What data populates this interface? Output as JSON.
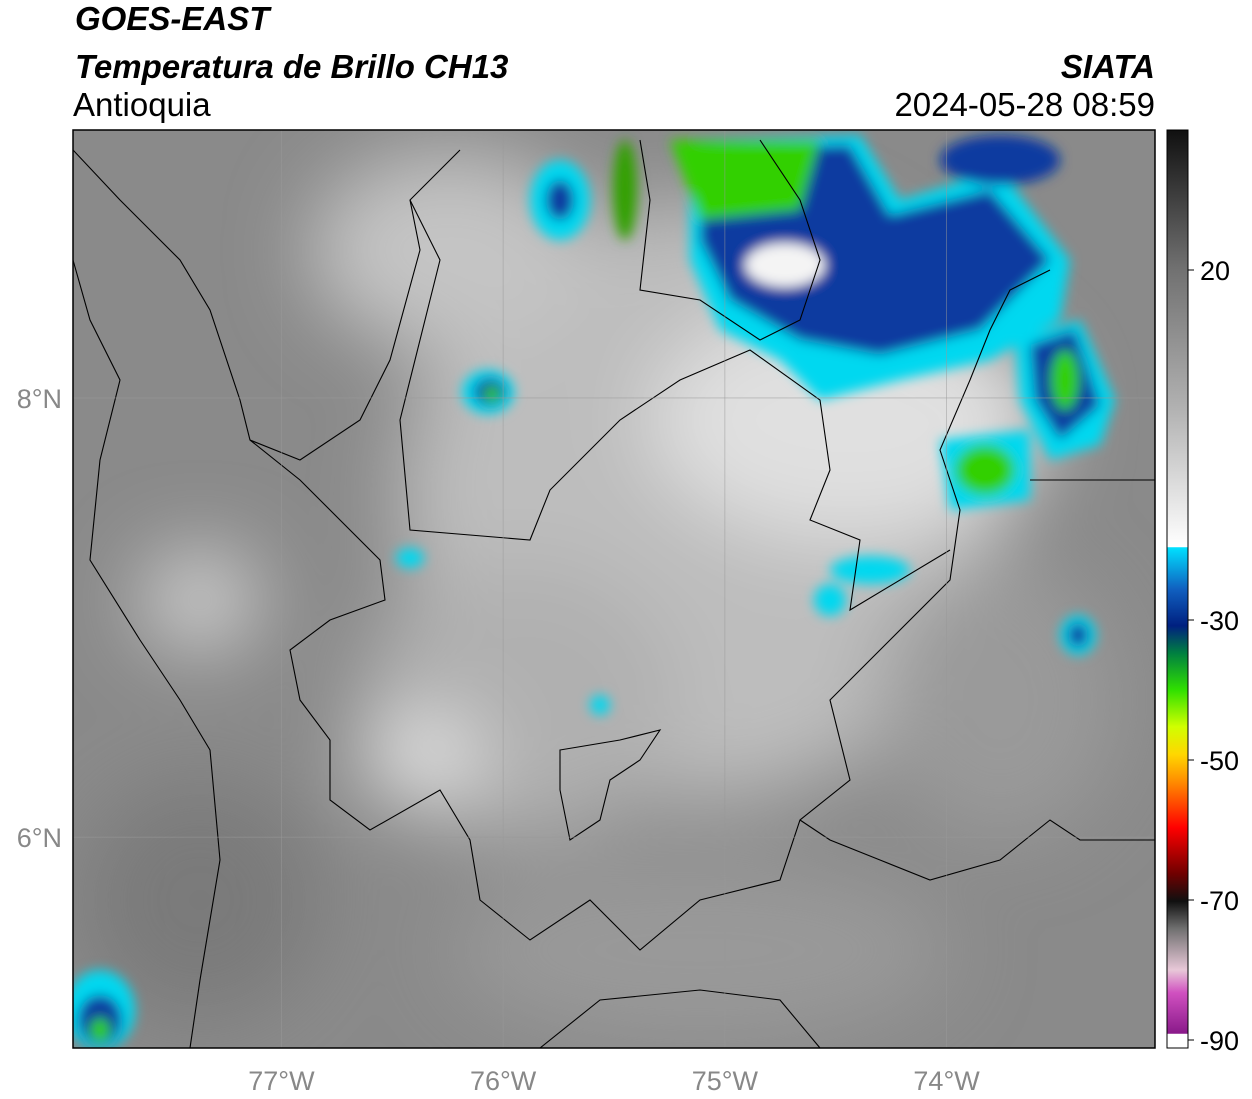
{
  "header": {
    "title": "GOES-EAST",
    "subtitle": "Temperatura de Brillo CH13",
    "region": "Antioquia",
    "source": "SIATA",
    "datetime": "2024-05-28 08:59"
  },
  "map": {
    "lon_range": [
      -77.94,
      -73.06
    ],
    "lat_range": [
      5.04,
      9.22
    ],
    "lon_ticks": [
      {
        "value": -77,
        "label": "77°W"
      },
      {
        "value": -76,
        "label": "76°W"
      },
      {
        "value": -75,
        "label": "75°W"
      },
      {
        "value": -74,
        "label": "74°W"
      }
    ],
    "lat_ticks": [
      {
        "value": 8,
        "label": "8°N"
      },
      {
        "value": 6,
        "label": "6°N"
      }
    ]
  },
  "colorbar": {
    "range": [
      -90,
      40
    ],
    "ticks": [
      20,
      -30,
      -50,
      -70,
      -90
    ]
  }
}
